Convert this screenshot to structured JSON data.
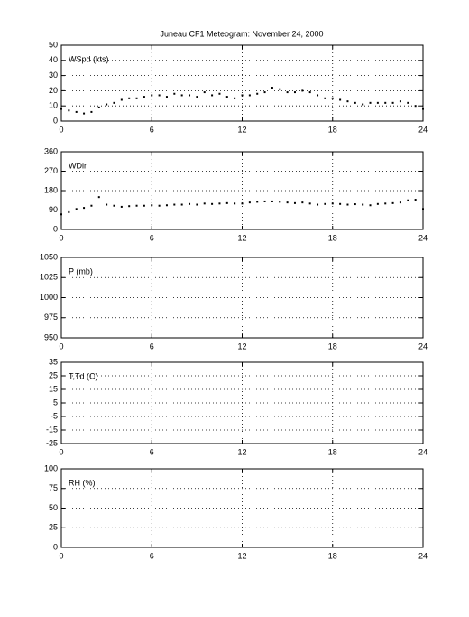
{
  "title": "Juneau CF1 Meteogram:  November 24, 2000",
  "chart_data": [
    {
      "type": "scatter",
      "label": "WSpd (kts)",
      "xlim": [
        0,
        24
      ],
      "xticks": [
        0,
        6,
        12,
        18,
        24
      ],
      "ylim": [
        0,
        50
      ],
      "yticks": [
        0,
        10,
        20,
        30,
        40,
        50
      ],
      "grid": true,
      "color": "#000000",
      "x": [
        0,
        0.5,
        1,
        1.5,
        2,
        2.5,
        3,
        3.5,
        4,
        4.5,
        5,
        5.5,
        6,
        6.5,
        7,
        7.5,
        8,
        8.5,
        9,
        9.5,
        10,
        10.5,
        11,
        11.5,
        12,
        12.5,
        13,
        13.5,
        14,
        14.5,
        15,
        15.5,
        16,
        16.5,
        17,
        17.5,
        18,
        18.5,
        19,
        19.5,
        20,
        20.5,
        21,
        21.5,
        22,
        22.5,
        23,
        23.5,
        24
      ],
      "values": [
        8,
        7,
        6,
        5,
        6,
        9,
        11,
        12,
        14,
        15,
        15,
        16,
        17,
        17,
        16,
        18,
        17,
        17,
        16,
        19,
        17,
        18,
        16,
        15,
        17,
        17,
        18,
        19,
        22,
        21,
        19,
        19,
        20,
        19,
        17,
        15,
        15,
        14,
        13,
        12,
        11,
        12,
        12,
        12,
        12,
        13,
        12,
        10,
        8
      ]
    },
    {
      "type": "scatter",
      "label": "WDir",
      "xlim": [
        0,
        24
      ],
      "xticks": [
        0,
        6,
        12,
        18,
        24
      ],
      "ylim": [
        0,
        360
      ],
      "yticks": [
        0,
        90,
        180,
        270,
        360
      ],
      "grid": true,
      "color": "#000000",
      "x": [
        0,
        0.5,
        1,
        1.5,
        2,
        2.5,
        3,
        3.5,
        4,
        4.5,
        5,
        5.5,
        6,
        6.5,
        7,
        7.5,
        8,
        8.5,
        9,
        9.5,
        10,
        10.5,
        11,
        11.5,
        12,
        12.5,
        13,
        13.5,
        14,
        14.5,
        15,
        15.5,
        16,
        16.5,
        17,
        17.5,
        18,
        18.5,
        19,
        19.5,
        20,
        20.5,
        21,
        21.5,
        22,
        22.5,
        23,
        23.5,
        24
      ],
      "values": [
        70,
        80,
        95,
        100,
        110,
        150,
        115,
        110,
        105,
        108,
        110,
        110,
        112,
        110,
        112,
        115,
        115,
        118,
        115,
        120,
        118,
        120,
        122,
        120,
        120,
        125,
        128,
        130,
        130,
        128,
        125,
        122,
        125,
        120,
        115,
        118,
        120,
        118,
        115,
        117,
        115,
        112,
        118,
        120,
        122,
        125,
        135,
        138,
        95
      ]
    },
    {
      "type": "line",
      "label": "P (mb)",
      "xlim": [
        0,
        24
      ],
      "xticks": [
        0,
        6,
        12,
        18,
        24
      ],
      "ylim": [
        950,
        1050
      ],
      "yticks": [
        950,
        975,
        1000,
        1025,
        1050
      ],
      "grid": true
    },
    {
      "type": "line",
      "label": "T,Td (C)",
      "xlim": [
        0,
        24
      ],
      "xticks": [
        0,
        6,
        12,
        18,
        24
      ],
      "ylim": [
        -25,
        35
      ],
      "yticks": [
        -25,
        -15,
        -5,
        5,
        15,
        25,
        35
      ],
      "grid": true
    },
    {
      "type": "line",
      "label": "RH (%)",
      "xlim": [
        0,
        24
      ],
      "xticks": [
        0,
        6,
        12,
        18,
        24
      ],
      "ylim": [
        0,
        100
      ],
      "yticks": [
        0,
        25,
        50,
        75,
        100
      ],
      "grid": true
    }
  ]
}
